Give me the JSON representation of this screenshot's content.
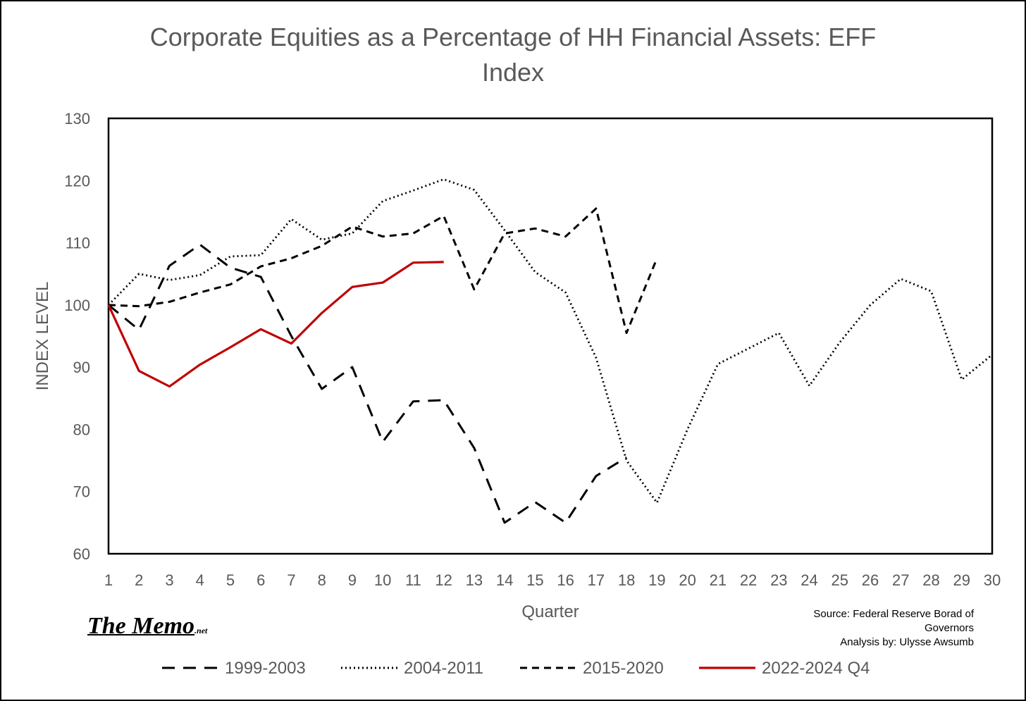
{
  "title": "Corporate Equities as a Percentage of HH Financial Assets: EFF Index",
  "source_line1": "Source: Federal Reserve Borad of",
  "source_line2": "Governors",
  "source_line3": "Analysis by: Ulysse Awsumb",
  "logo_main": "The Memo",
  "logo_suffix": ".net",
  "chart_data": {
    "type": "line",
    "title": "Corporate Equities as a Percentage of HH Financial Assets: EFF Index",
    "xlabel": "Quarter",
    "ylabel": "INDEX LEVEL",
    "xlim": [
      1,
      30
    ],
    "ylim": [
      60,
      130
    ],
    "ytick_step": 10,
    "grid": false,
    "legend_position": "bottom",
    "x_categories": [
      1,
      2,
      3,
      4,
      5,
      6,
      7,
      8,
      9,
      10,
      11,
      12,
      13,
      14,
      15,
      16,
      17,
      18,
      19,
      20,
      21,
      22,
      23,
      24,
      25,
      26,
      27,
      28,
      29,
      30
    ],
    "series": [
      {
        "name": "1999-2003",
        "color": "#000000",
        "style": "dash",
        "x": [
          1,
          2,
          3,
          4,
          5,
          6,
          7,
          8,
          9,
          10,
          11,
          12,
          13,
          14,
          15,
          16,
          17,
          18
        ],
        "values": [
          100,
          96,
          106.3,
          109.7,
          106,
          104.5,
          95,
          86.5,
          90,
          78,
          84.5,
          84.7,
          77,
          65,
          68.3,
          65,
          72.5,
          75.5
        ]
      },
      {
        "name": "2004-2011",
        "color": "#000000",
        "style": "dot",
        "x": [
          1,
          2,
          3,
          4,
          5,
          6,
          7,
          8,
          9,
          10,
          11,
          12,
          13,
          14,
          15,
          16,
          17,
          18,
          19,
          20,
          21,
          22,
          23,
          24,
          25,
          26,
          27,
          28,
          29,
          30
        ],
        "values": [
          100,
          105,
          104,
          104.8,
          107.8,
          108,
          113.8,
          110.5,
          111.5,
          116.7,
          118.4,
          120.2,
          118.5,
          112,
          105.3,
          102,
          91.5,
          75,
          68.2,
          80,
          90.5,
          93,
          95.5,
          87,
          94,
          100,
          104.2,
          102.2,
          88,
          92
        ]
      },
      {
        "name": "2015-2020",
        "color": "#000000",
        "style": "short-dash",
        "x": [
          1,
          2,
          3,
          4,
          5,
          6,
          7,
          8,
          9,
          10,
          11,
          12,
          13,
          14,
          15,
          16,
          17,
          18,
          19
        ],
        "values": [
          100,
          99.8,
          100.5,
          102,
          103.3,
          106.2,
          107.5,
          109.5,
          112.6,
          111,
          111.5,
          114.3,
          102.5,
          111.5,
          112.3,
          111,
          115.5,
          95.5,
          107.5
        ]
      },
      {
        "name": "2022-2024 Q4",
        "color": "#c00000",
        "style": "solid",
        "x": [
          1,
          2,
          3,
          4,
          5,
          6,
          7,
          8,
          9,
          10,
          11,
          12
        ],
        "values": [
          100,
          89.4,
          86.9,
          90.4,
          93.2,
          96.1,
          93.8,
          98.7,
          102.9,
          103.6,
          106.8,
          106.9
        ]
      }
    ]
  }
}
